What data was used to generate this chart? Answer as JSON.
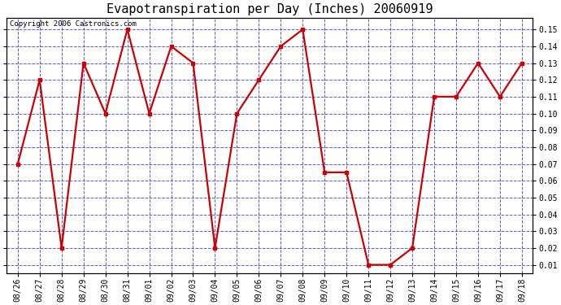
{
  "title": "Evapotranspiration per Day (Inches) 20060919",
  "copyright_text": "Copyright 2006 Castronics.com",
  "dates": [
    "08/26",
    "08/27",
    "08/28",
    "08/29",
    "08/30",
    "08/31",
    "09/01",
    "09/02",
    "09/03",
    "09/04",
    "09/05",
    "09/06",
    "09/07",
    "09/08",
    "09/09",
    "09/10",
    "09/11",
    "09/12",
    "09/13",
    "09/14",
    "09/15",
    "09/16",
    "09/17",
    "09/18"
  ],
  "values": [
    0.07,
    0.12,
    0.02,
    0.13,
    0.1,
    0.15,
    0.1,
    0.14,
    0.13,
    0.02,
    0.1,
    0.12,
    0.14,
    0.15,
    0.065,
    0.065,
    0.01,
    0.01,
    0.02,
    0.11,
    0.11,
    0.13,
    0.11,
    0.13
  ],
  "line_color": "#cc0000",
  "marker": "s",
  "marker_size": 2.5,
  "line_width": 1.6,
  "fig_bg_color": "#ffffff",
  "plot_bg_color": "#ffffff",
  "grid_color": "#3333cc",
  "grid_style": "--",
  "grid_alpha": 0.8,
  "ylim": [
    0.005,
    0.157
  ],
  "yticks": [
    0.01,
    0.02,
    0.03,
    0.04,
    0.05,
    0.06,
    0.07,
    0.08,
    0.09,
    0.1,
    0.11,
    0.12,
    0.13,
    0.14,
    0.15
  ],
  "title_fontsize": 11,
  "tick_fontsize": 7,
  "copyright_fontsize": 6.5
}
